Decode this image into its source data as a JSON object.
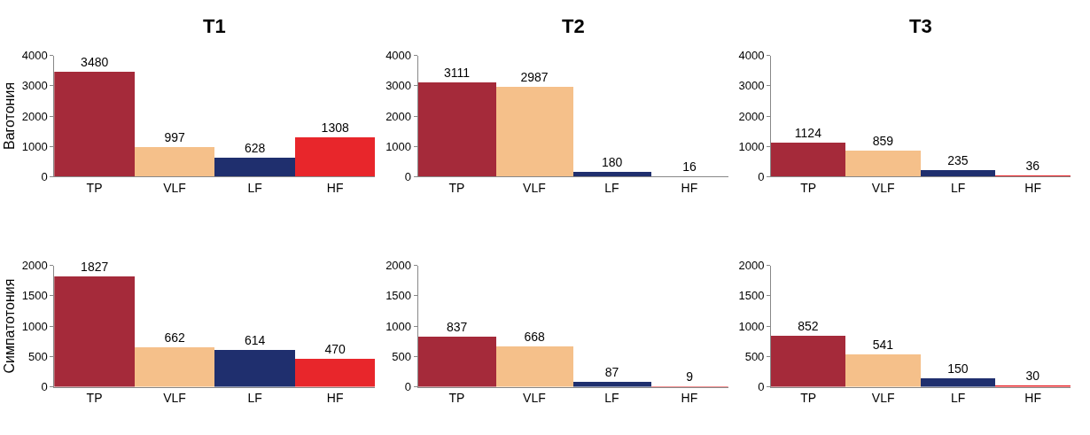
{
  "chart_data": [
    {
      "type": "bar",
      "title": "T1",
      "ylabel": "Ваготония",
      "categories": [
        "TP",
        "VLF",
        "LF",
        "HF"
      ],
      "values": [
        3480,
        997,
        628,
        1308
      ],
      "colors": [
        "#a52a3a",
        "#f5c08a",
        "#1f2f6e",
        "#e8262b"
      ],
      "ylim": [
        0,
        4000
      ],
      "yticks": [
        0,
        1000,
        2000,
        3000,
        4000
      ],
      "data_labels": true
    },
    {
      "type": "bar",
      "title": "T2",
      "categories": [
        "TP",
        "VLF",
        "LF",
        "HF"
      ],
      "values": [
        3111,
        2987,
        180,
        16
      ],
      "colors": [
        "#a52a3a",
        "#f5c08a",
        "#1f2f6e",
        "#e8262b"
      ],
      "ylim": [
        0,
        4000
      ],
      "yticks": [
        0,
        1000,
        2000,
        3000,
        4000
      ],
      "data_labels": true
    },
    {
      "type": "bar",
      "title": "T3",
      "categories": [
        "TP",
        "VLF",
        "LF",
        "HF"
      ],
      "values": [
        1124,
        859,
        235,
        36
      ],
      "colors": [
        "#a52a3a",
        "#f5c08a",
        "#1f2f6e",
        "#e8262b"
      ],
      "ylim": [
        0,
        4000
      ],
      "yticks": [
        0,
        1000,
        2000,
        3000,
        4000
      ],
      "data_labels": true
    },
    {
      "type": "bar",
      "ylabel": "Симпатотония",
      "categories": [
        "TP",
        "VLF",
        "LF",
        "HF"
      ],
      "values": [
        1827,
        662,
        614,
        470
      ],
      "colors": [
        "#a52a3a",
        "#f5c08a",
        "#1f2f6e",
        "#e8262b"
      ],
      "ylim": [
        0,
        2000
      ],
      "yticks": [
        0,
        500,
        1000,
        1500,
        2000
      ],
      "data_labels": true
    },
    {
      "type": "bar",
      "categories": [
        "TP",
        "VLF",
        "LF",
        "HF"
      ],
      "values": [
        837,
        668,
        87,
        9
      ],
      "colors": [
        "#a52a3a",
        "#f5c08a",
        "#1f2f6e",
        "#e8262b"
      ],
      "ylim": [
        0,
        2000
      ],
      "yticks": [
        0,
        500,
        1000,
        1500,
        2000
      ],
      "data_labels": true
    },
    {
      "type": "bar",
      "categories": [
        "TP",
        "VLF",
        "LF",
        "HF"
      ],
      "values": [
        852,
        541,
        150,
        30
      ],
      "colors": [
        "#a52a3a",
        "#f5c08a",
        "#1f2f6e",
        "#e8262b"
      ],
      "ylim": [
        0,
        2000
      ],
      "yticks": [
        0,
        500,
        1000,
        1500,
        2000
      ],
      "data_labels": true
    }
  ]
}
